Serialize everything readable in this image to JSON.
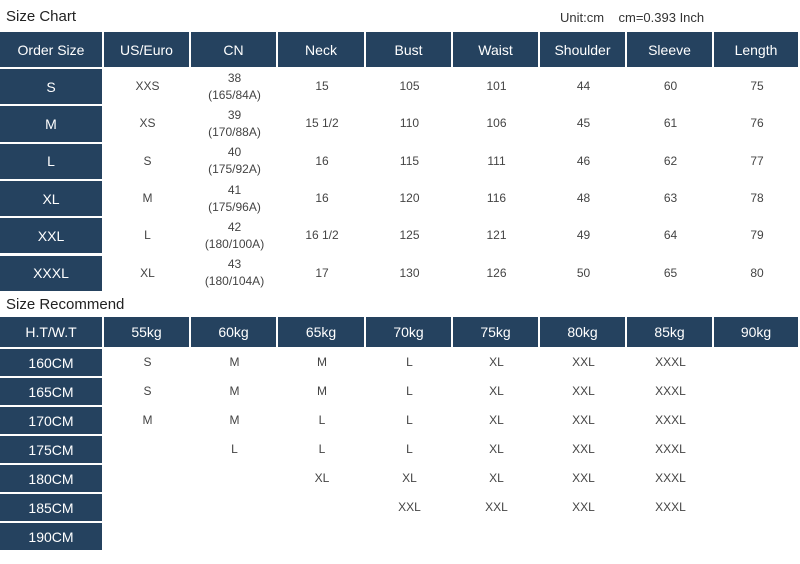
{
  "size_chart": {
    "title": "Size Chart",
    "unit": "Unit:cm    cm=0.393 Inch",
    "headers": [
      "Order  Size",
      "US/Euro",
      "CN",
      "Neck",
      "Bust",
      "Waist",
      "Shoulder",
      "Sleeve",
      "Length"
    ],
    "rows": [
      {
        "size": "S",
        "cells": [
          "XXS",
          "38\n(165/84A)",
          "15",
          "105",
          "101",
          "44",
          "60",
          "75"
        ]
      },
      {
        "size": "M",
        "cells": [
          "XS",
          "39\n(170/88A)",
          "15 1/2",
          "110",
          "106",
          "45",
          "61",
          "76"
        ]
      },
      {
        "size": "L",
        "cells": [
          "S",
          "40\n(175/92A)",
          "16",
          "115",
          "111",
          "46",
          "62",
          "77"
        ]
      },
      {
        "size": "XL",
        "cells": [
          "M",
          "41\n(175/96A)",
          "16",
          "120",
          "116",
          "48",
          "63",
          "78"
        ]
      },
      {
        "size": "XXL",
        "cells": [
          "L",
          "42\n(180/100A)",
          "16 1/2",
          "125",
          "121",
          "49",
          "64",
          "79"
        ]
      },
      {
        "size": "XXXL",
        "cells": [
          "XL",
          "43\n(180/104A)",
          "17",
          "130",
          "126",
          "50",
          "65",
          "80"
        ]
      }
    ]
  },
  "size_recommend": {
    "title": "Size Recommend",
    "headers": [
      "H.T/W.T",
      "55kg",
      "60kg",
      "65kg",
      "70kg",
      "75kg",
      "80kg",
      "85kg",
      "90kg"
    ],
    "rows": [
      {
        "height": "160CM",
        "cells": [
          "S",
          "M",
          "M",
          "L",
          "XL",
          "XXL",
          "XXXL",
          ""
        ]
      },
      {
        "height": "165CM",
        "cells": [
          "S",
          "M",
          "M",
          "L",
          "XL",
          "XXL",
          "XXXL",
          ""
        ]
      },
      {
        "height": "170CM",
        "cells": [
          "M",
          "M",
          "L",
          "L",
          "XL",
          "XXL",
          "XXXL",
          ""
        ]
      },
      {
        "height": "175CM",
        "cells": [
          "",
          "L",
          "L",
          "L",
          "XL",
          "XXL",
          "XXXL",
          ""
        ]
      },
      {
        "height": "180CM",
        "cells": [
          "",
          "",
          "XL",
          "XL",
          "XL",
          "XXL",
          "XXXL",
          ""
        ]
      },
      {
        "height": "185CM",
        "cells": [
          "",
          "",
          "",
          "XXL",
          "XXL",
          "XXL",
          "XXXL",
          ""
        ]
      },
      {
        "height": "190CM",
        "cells": [
          "",
          "",
          "",
          "",
          "",
          "",
          "",
          ""
        ]
      }
    ]
  },
  "colors": {
    "header_bg": "#25425f",
    "header_text": "#ffffff",
    "cell_text": "#444444"
  }
}
